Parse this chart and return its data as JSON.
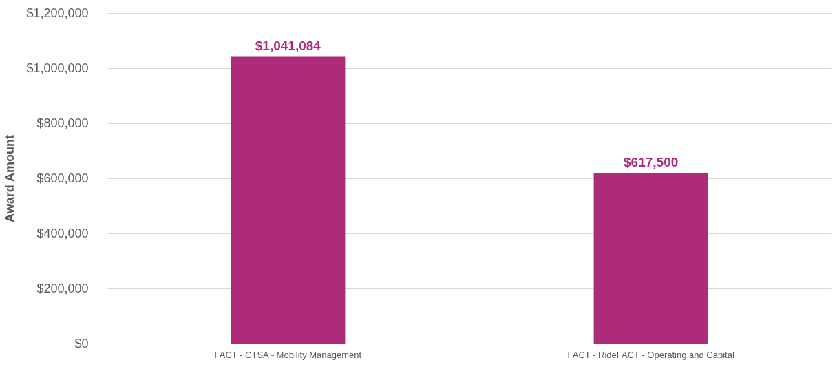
{
  "chart_data": {
    "type": "bar",
    "ylabel": "Award Amount",
    "categories": [
      "FACT - CTSA - Mobility Management",
      "FACT - RideFACT - Operating and Capital"
    ],
    "values": [
      1041084,
      617500
    ],
    "color": "#ae2a7b",
    "value_labels": [
      "$1,041,084",
      "$617,500"
    ],
    "ylim": [
      0,
      1200000
    ],
    "yticks": [
      {
        "value": 0,
        "label": "$0"
      },
      {
        "value": 200000,
        "label": "$200,000"
      },
      {
        "value": 400000,
        "label": "$400,000"
      },
      {
        "value": 600000,
        "label": "$600,000"
      },
      {
        "value": 800000,
        "label": "$800,000"
      },
      {
        "value": 1000000,
        "label": "$1,000,000"
      },
      {
        "value": 1200000,
        "label": "$1,200,000"
      }
    ],
    "grid": "y"
  }
}
